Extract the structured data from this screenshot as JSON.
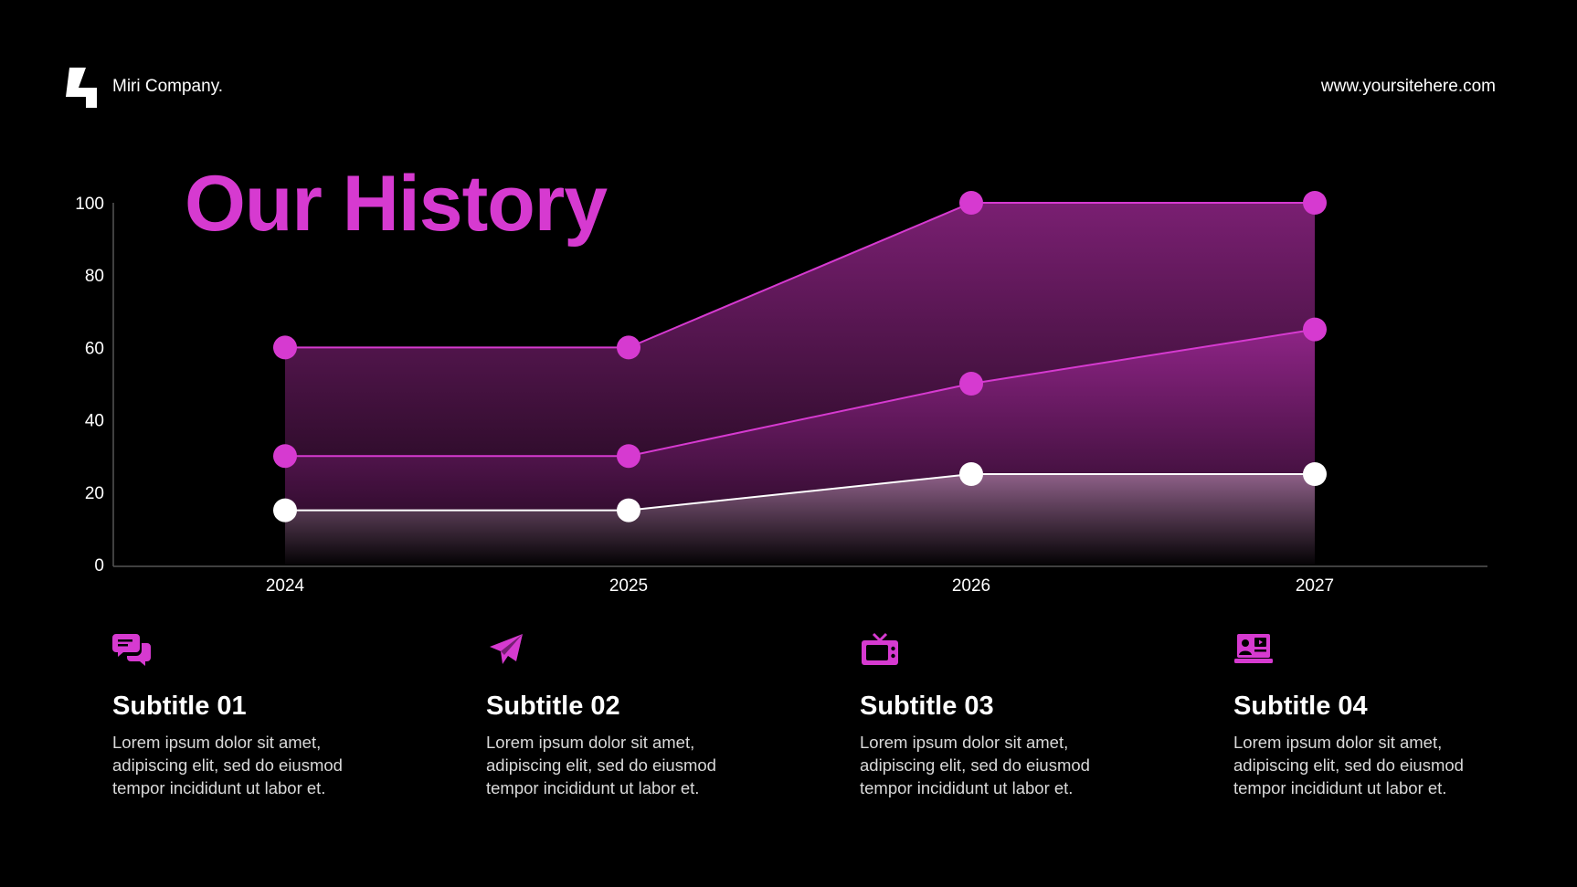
{
  "header": {
    "brand": "Miri Company.",
    "website": "www.yoursitehere.com"
  },
  "title": "Our History",
  "colors": {
    "accent": "#d63ad0",
    "background": "#000000",
    "text": "#ffffff"
  },
  "chart_data": {
    "type": "area",
    "categories": [
      "2024",
      "2025",
      "2026",
      "2027"
    ],
    "series": [
      {
        "values": [
          60,
          60,
          100,
          100
        ],
        "color": "#d63ad0"
      },
      {
        "values": [
          30,
          30,
          50,
          65
        ],
        "color": "#d63ad0"
      },
      {
        "values": [
          15,
          15,
          25,
          25
        ],
        "color": "#ffffff"
      }
    ],
    "yticks": [
      0,
      20,
      40,
      60,
      80,
      100
    ],
    "ylim": [
      0,
      100
    ],
    "grid": false,
    "legend": "none"
  },
  "features": [
    {
      "icon": "chat-bubbles-icon",
      "title": "Subtitle 01",
      "lines": [
        "Lorem ipsum dolor sit amet,",
        "adipiscing elit, sed do eiusmod",
        "tempor incididunt ut labor et."
      ]
    },
    {
      "icon": "paper-plane-icon",
      "title": "Subtitle 02",
      "lines": [
        "Lorem ipsum dolor sit amet,",
        "adipiscing elit, sed do eiusmod",
        "tempor incididunt ut labor et."
      ]
    },
    {
      "icon": "television-icon",
      "title": "Subtitle 03",
      "lines": [
        "Lorem ipsum dolor sit amet,",
        "adipiscing elit, sed do eiusmod",
        "tempor incididunt ut labor et."
      ]
    },
    {
      "icon": "laptop-video-icon",
      "title": "Subtitle 04",
      "lines": [
        "Lorem ipsum dolor sit amet,",
        "adipiscing elit, sed do eiusmod",
        "tempor incididunt ut labor et."
      ]
    }
  ]
}
